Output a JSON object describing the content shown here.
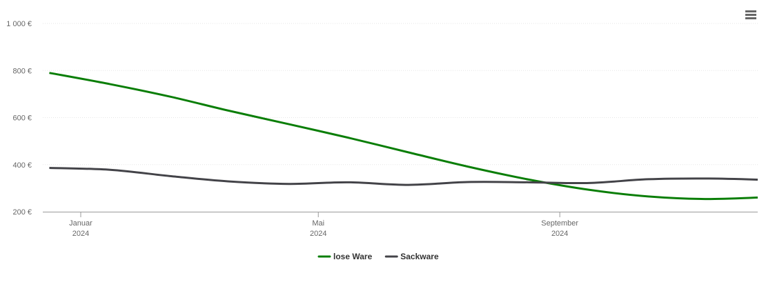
{
  "chart_data": {
    "type": "line",
    "x": [
      "2023-12",
      "2024-01",
      "2024-02",
      "2024-03",
      "2024-04",
      "2024-05",
      "2024-06",
      "2024-07",
      "2024-08",
      "2024-09",
      "2024-10",
      "2024-11",
      "2024-12"
    ],
    "series": [
      {
        "name": "lose Ware",
        "color": "#0a7e07",
        "values": [
          790,
          742,
          688,
          630,
          572,
          515,
          452,
          392,
          337,
          293,
          265,
          254,
          262
        ]
      },
      {
        "name": "Sackware",
        "color": "#434348",
        "values": [
          386,
          378,
          351,
          329,
          318,
          325,
          314,
          326,
          325,
          322,
          338,
          341,
          335
        ]
      }
    ],
    "ylim": [
      200,
      1000
    ],
    "yticks": [
      {
        "value": 200,
        "label": "200 €"
      },
      {
        "value": 400,
        "label": "400 €"
      },
      {
        "value": 600,
        "label": "600 €"
      },
      {
        "value": 800,
        "label": "800 €"
      },
      {
        "value": 1000,
        "label": "1 000 €"
      }
    ],
    "xticks": [
      {
        "value": "2024-01",
        "label": [
          "Januar",
          "2024"
        ]
      },
      {
        "value": "2024-05",
        "label": [
          "Mai",
          "2024"
        ]
      },
      {
        "value": "2024-09",
        "label": [
          "September",
          "2024"
        ]
      }
    ],
    "grid": true,
    "legend": "bottom"
  }
}
